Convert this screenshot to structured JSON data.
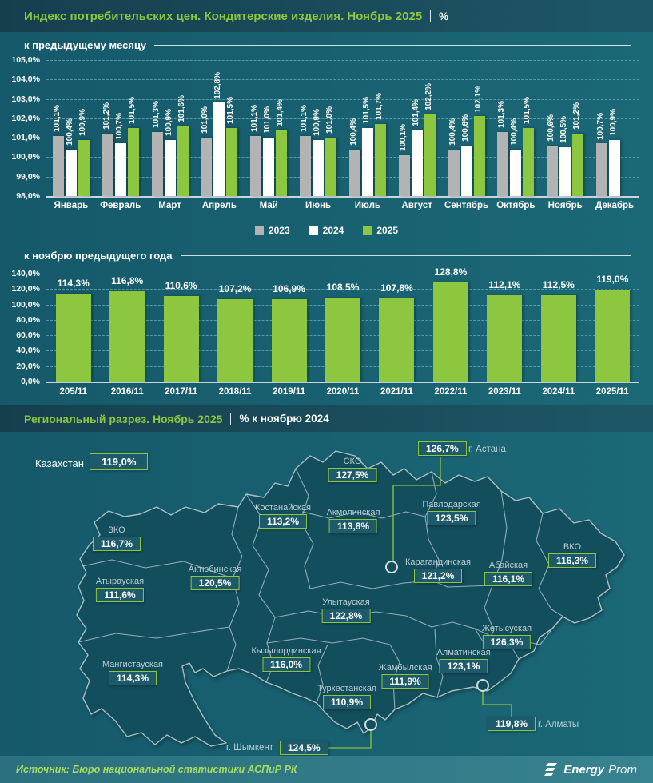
{
  "header": {
    "title": "Индекс потребительских цен. Кондитерские изделия. Ноябрь 2025",
    "unit": "%"
  },
  "chart_data": [
    {
      "type": "bar",
      "title": "к предыдущему месяцу",
      "categories": [
        "Январь",
        "Февраль",
        "Март",
        "Апрель",
        "Май",
        "Июнь",
        "Июль",
        "Август",
        "Сентябрь",
        "Октябрь",
        "Ноябрь",
        "Декабрь"
      ],
      "series": [
        {
          "name": "2023",
          "color": "#b3b3b3",
          "values": [
            101.1,
            101.2,
            101.3,
            101.0,
            101.1,
            101.1,
            100.4,
            100.1,
            100.4,
            101.3,
            100.6,
            100.7
          ]
        },
        {
          "name": "2024",
          "color": "#ffffff",
          "values": [
            100.4,
            100.7,
            100.9,
            102.8,
            101.0,
            100.9,
            101.5,
            101.4,
            100.6,
            100.4,
            100.5,
            100.9
          ]
        },
        {
          "name": "2025",
          "color": "#8dc63f",
          "values": [
            100.9,
            101.5,
            101.6,
            101.5,
            101.4,
            101.0,
            101.7,
            102.2,
            102.1,
            101.5,
            101.2,
            null
          ]
        }
      ],
      "ylim": [
        98,
        105
      ],
      "yticks": [
        "105,0%",
        "104,0%",
        "103,0%",
        "102,0%",
        "101,0%",
        "100,0%",
        "99,0%",
        "98,0%"
      ],
      "grid": true,
      "legend_position": "bottom",
      "label_format": "percent-comma"
    },
    {
      "type": "bar",
      "title": "к ноябрю предыдущего года",
      "categories": [
        "205/11",
        "2016/11",
        "2017/11",
        "2018/11",
        "2019/11",
        "2020/11",
        "2021/11",
        "2022/11",
        "2023/11",
        "2024/11",
        "2025/11"
      ],
      "values": [
        114.3,
        116.8,
        110.6,
        107.2,
        106.9,
        108.5,
        107.8,
        128.8,
        112.1,
        112.5,
        119.0
      ],
      "bar_color": "#8dc63f",
      "ylim": [
        0,
        140
      ],
      "yticks": [
        "140,0%",
        "120,0%",
        "100,0%",
        "80,0%",
        "60,0%",
        "40,0%",
        "20,0%",
        "0,0%"
      ],
      "grid": true,
      "label_format": "percent-comma"
    }
  ],
  "map": {
    "section_title": "Региональный разрез. Ноябрь 2025",
    "section_subtitle": "% к ноябрю 2024",
    "country": {
      "name": "Казахстан",
      "value": "119,0%"
    },
    "regions": [
      {
        "name": "СКО",
        "value": "127,5%"
      },
      {
        "name": "Костанайская",
        "value": "113,2%"
      },
      {
        "name": "Акмолинская",
        "value": "113,8%"
      },
      {
        "name": "Павлодарская",
        "value": "123,5%"
      },
      {
        "name": "ЗКО",
        "value": "116,7%"
      },
      {
        "name": "Актюбинская",
        "value": "120,5%"
      },
      {
        "name": "Атырауская",
        "value": "111,6%"
      },
      {
        "name": "Карагандинская",
        "value": "121,2%"
      },
      {
        "name": "Абайская",
        "value": "116,1%"
      },
      {
        "name": "ВКО",
        "value": "116,3%"
      },
      {
        "name": "Улытауская",
        "value": "122,8%"
      },
      {
        "name": "Жетысуская",
        "value": "126,3%"
      },
      {
        "name": "Мангистауская",
        "value": "114,3%"
      },
      {
        "name": "Кызылординская",
        "value": "116,0%"
      },
      {
        "name": "Алматинская",
        "value": "123,1%"
      },
      {
        "name": "Жамбылская",
        "value": "111,9%"
      },
      {
        "name": "Туркестанская",
        "value": "110,9%"
      }
    ],
    "cities": [
      {
        "name": "г. Астана",
        "value": "126,7%"
      },
      {
        "name": "г. Алматы",
        "value": "119,8%"
      },
      {
        "name": "г. Шымкент",
        "value": "124,5%"
      }
    ]
  },
  "footer": {
    "source": "Источник: Бюро национальной статистики АСПиР РК",
    "brand_bold": "Energy",
    "brand_light": "Prom"
  },
  "colors": {
    "accent_green": "#8dc63f",
    "background": "#17606f",
    "band": "#1a4c5b",
    "map_fill": "#134e5d",
    "map_stroke": "#a9bfc6"
  }
}
